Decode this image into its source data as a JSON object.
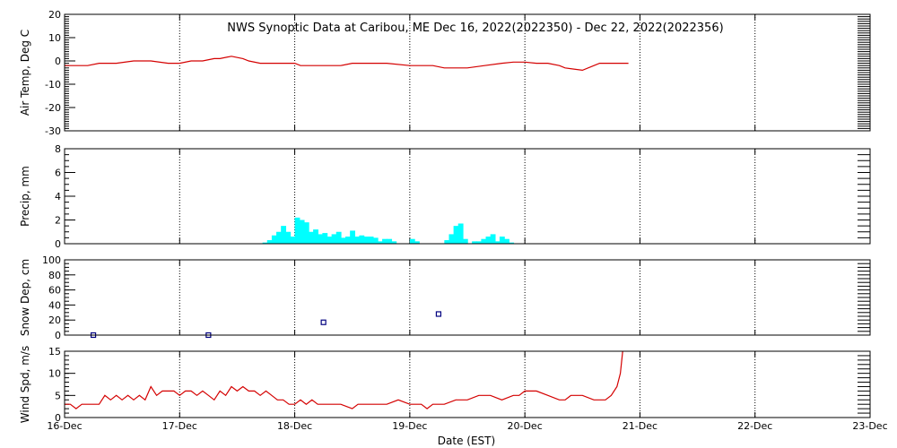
{
  "title": "NWS Synoptic Data at Caribou, ME   Dec 16, 2022(2022350) - Dec 22, 2022(2022356)",
  "xlabel": "Date (EST)",
  "x_ticks": [
    "16-Dec",
    "17-Dec",
    "18-Dec",
    "19-Dec",
    "20-Dec",
    "21-Dec",
    "22-Dec",
    "23-Dec"
  ],
  "colors": {
    "air_temp": "#d40000",
    "precip": "#00ffff",
    "snow": "#000080",
    "wind": "#d40000",
    "grid": "#000000"
  },
  "chart_data": [
    {
      "type": "line",
      "ylabel": "Air Temp, Deg C",
      "ylim": [
        -30,
        20
      ],
      "yticks": [
        -30,
        -20,
        -10,
        0,
        10,
        20
      ],
      "x_units": "days since 16-Dec 00:00 EST",
      "series": [
        {
          "name": "",
          "x": [
            0,
            0.2,
            0.3,
            0.45,
            0.6,
            0.75,
            0.9,
            1.0,
            1.1,
            1.2,
            1.3,
            1.35,
            1.45,
            1.55,
            1.6,
            1.7,
            1.8,
            2.0,
            2.05,
            2.15,
            2.3,
            2.4,
            2.5,
            2.6,
            2.8,
            3.0,
            3.1,
            3.2,
            3.3,
            3.5,
            3.65,
            3.8,
            3.9,
            4.0,
            4.1,
            4.2,
            4.3,
            4.35,
            4.5,
            4.6,
            4.65,
            4.7,
            4.8,
            4.9
          ],
          "y": [
            -2,
            -2,
            -1,
            -1,
            0,
            0,
            -1,
            -1,
            0,
            0,
            1,
            1,
            2,
            1,
            0,
            -1,
            -1,
            -1,
            -2,
            -2,
            -2,
            -2,
            -1,
            -1,
            -1,
            -2,
            -2,
            -2,
            -3,
            -3,
            -2,
            -1,
            -0.5,
            -0.5,
            -1,
            -1,
            -2,
            -3,
            -4,
            -2,
            -1,
            -1,
            -1,
            -1
          ]
        }
      ]
    },
    {
      "type": "bar",
      "ylabel": "Precip, mm",
      "ylim": [
        0,
        8
      ],
      "yticks": [
        0,
        2,
        4,
        6,
        8
      ],
      "x_units": "days since 16-Dec 00:00 EST",
      "bar_width": 0.0417,
      "x": [
        1.72,
        1.76,
        1.8,
        1.84,
        1.88,
        1.92,
        1.96,
        2.0,
        2.04,
        2.08,
        2.12,
        2.16,
        2.2,
        2.24,
        2.28,
        2.32,
        2.36,
        2.4,
        2.44,
        2.48,
        2.52,
        2.56,
        2.6,
        2.64,
        2.68,
        2.72,
        2.76,
        2.8,
        2.84,
        3.0,
        3.04,
        3.3,
        3.34,
        3.38,
        3.42,
        3.46,
        3.54,
        3.58,
        3.62,
        3.66,
        3.7,
        3.74,
        3.78,
        3.82,
        3.86
      ],
      "values": [
        0.1,
        0.3,
        0.7,
        1.0,
        1.5,
        1.0,
        0.6,
        2.2,
        2.0,
        1.8,
        1.0,
        1.2,
        0.8,
        0.9,
        0.6,
        0.8,
        1.0,
        0.5,
        0.6,
        1.1,
        0.6,
        0.7,
        0.6,
        0.6,
        0.5,
        0.2,
        0.4,
        0.4,
        0.2,
        0.4,
        0.2,
        0.3,
        0.8,
        1.5,
        1.7,
        0.4,
        0.2,
        0.2,
        0.4,
        0.6,
        0.8,
        0.2,
        0.6,
        0.4,
        0.1
      ]
    },
    {
      "type": "scatter",
      "ylabel": "Snow Dep, cm",
      "ylim": [
        0,
        100
      ],
      "yticks": [
        0,
        20,
        40,
        60,
        80,
        100
      ],
      "x_units": "days since 16-Dec 00:00 EST",
      "series": [
        {
          "name": "",
          "x": [
            0.25,
            1.25,
            2.25,
            3.25
          ],
          "y": [
            0,
            0,
            17,
            28
          ]
        }
      ]
    },
    {
      "type": "line",
      "ylabel": "Wind Spd, m/s",
      "ylim": [
        0,
        15
      ],
      "yticks": [
        0,
        5,
        10,
        15
      ],
      "x_units": "days since 16-Dec 00:00 EST",
      "series": [
        {
          "name": "",
          "x": [
            0,
            0.05,
            0.1,
            0.15,
            0.2,
            0.3,
            0.35,
            0.4,
            0.45,
            0.5,
            0.55,
            0.6,
            0.65,
            0.7,
            0.75,
            0.8,
            0.85,
            0.9,
            0.95,
            1.0,
            1.05,
            1.1,
            1.15,
            1.2,
            1.25,
            1.3,
            1.35,
            1.4,
            1.45,
            1.5,
            1.55,
            1.6,
            1.65,
            1.7,
            1.75,
            1.8,
            1.85,
            1.9,
            1.95,
            2.0,
            2.05,
            2.1,
            2.15,
            2.2,
            2.3,
            2.4,
            2.5,
            2.55,
            2.6,
            2.7,
            2.8,
            2.9,
            3.0,
            3.05,
            3.1,
            3.15,
            3.2,
            3.3,
            3.4,
            3.5,
            3.6,
            3.7,
            3.8,
            3.9,
            3.95,
            4.0,
            4.05,
            4.1,
            4.2,
            4.3,
            4.35,
            4.4,
            4.5,
            4.6,
            4.65,
            4.7,
            4.75,
            4.8,
            4.83,
            4.85
          ],
          "y": [
            3,
            3,
            2,
            3,
            3,
            3,
            5,
            4,
            5,
            4,
            5,
            4,
            5,
            4,
            7,
            5,
            6,
            6,
            6,
            5,
            6,
            6,
            5,
            6,
            5,
            4,
            6,
            5,
            7,
            6,
            7,
            6,
            6,
            5,
            6,
            5,
            4,
            4,
            3,
            3,
            4,
            3,
            4,
            3,
            3,
            3,
            2,
            3,
            3,
            3,
            3,
            4,
            3,
            3,
            3,
            2,
            3,
            3,
            4,
            4,
            5,
            5,
            4,
            5,
            5,
            6,
            6,
            6,
            5,
            4,
            4,
            5,
            5,
            4,
            4,
            4,
            5,
            7,
            10,
            15
          ]
        }
      ]
    }
  ]
}
